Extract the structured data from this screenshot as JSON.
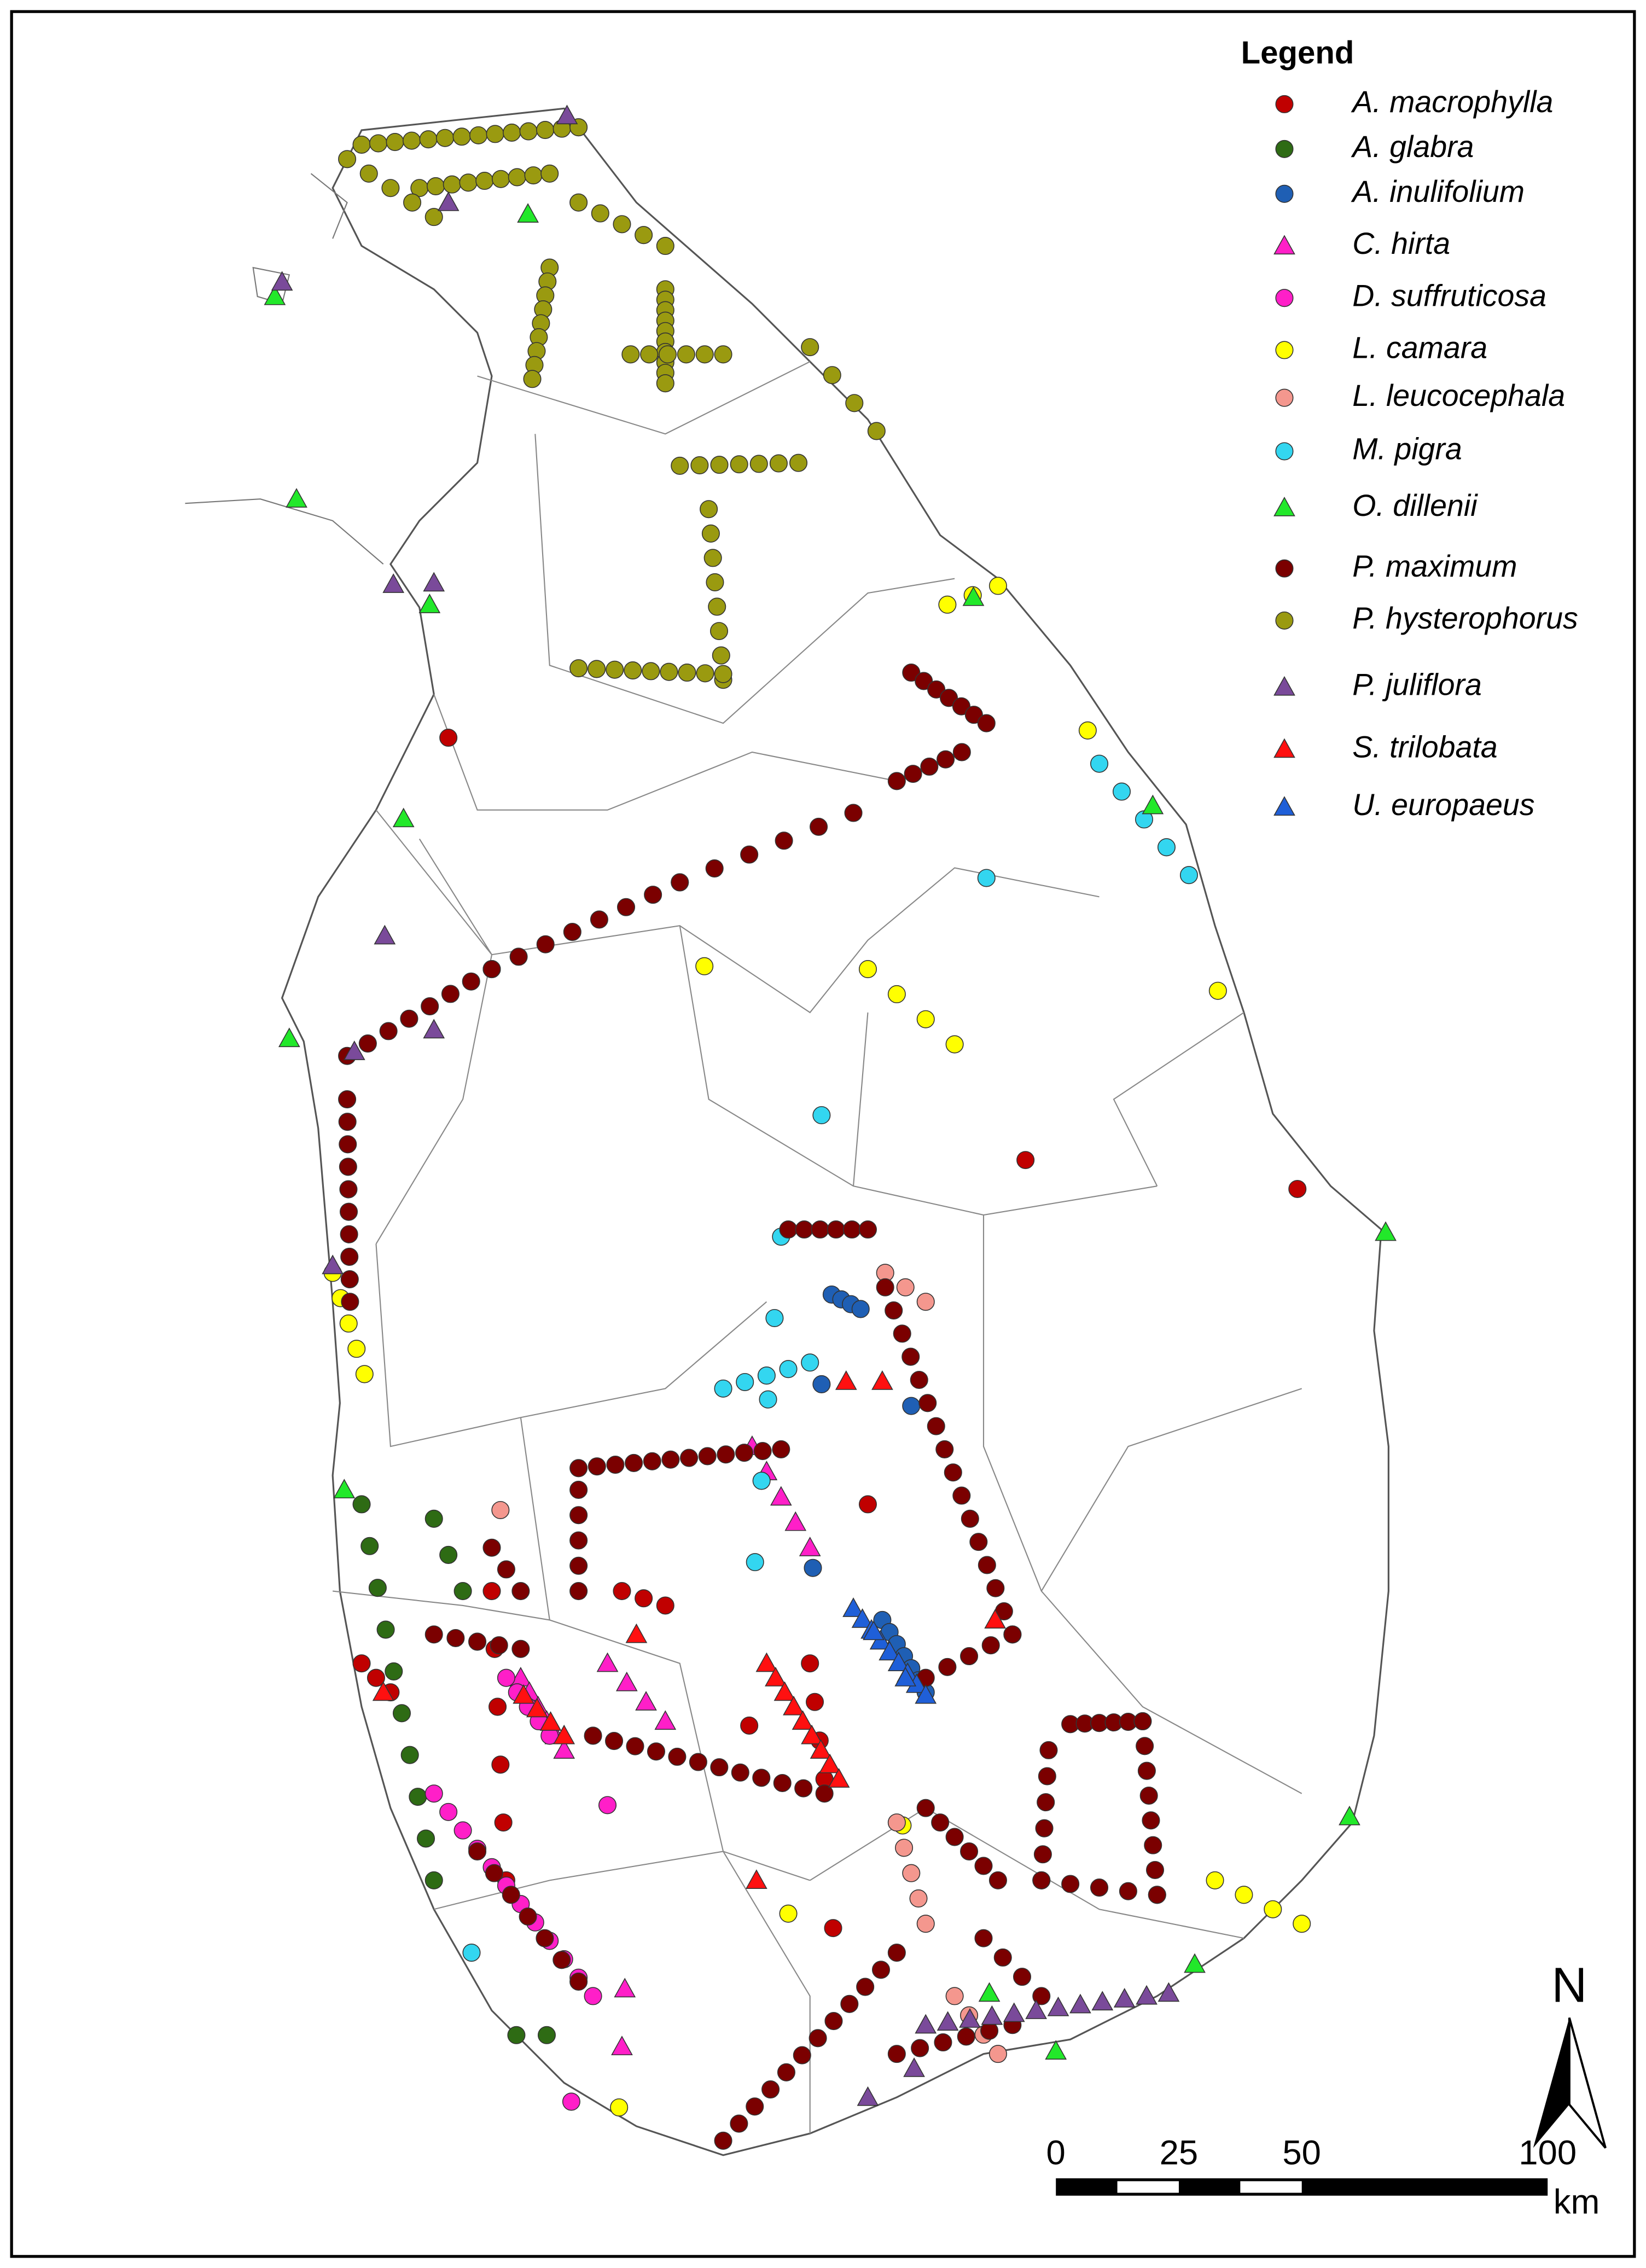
{
  "legend": {
    "title": "Legend",
    "items": [
      {
        "label": "A. macrophylla",
        "color": "#c00000",
        "shape": "circle"
      },
      {
        "label": "A. glabra",
        "color": "#2e6b14",
        "shape": "circle"
      },
      {
        "label": "A. inulifolium",
        "color": "#1f5fb4",
        "shape": "circle"
      },
      {
        "label": "C. hirta",
        "color": "#ff1fc8",
        "shape": "triangle"
      },
      {
        "label": "D. suffruticosa",
        "color": "#ff1fc8",
        "shape": "circle"
      },
      {
        "label": "L. camara",
        "color": "#ffff00",
        "shape": "circle"
      },
      {
        "label": "L. leucocephala",
        "color": "#f4978e",
        "shape": "circle"
      },
      {
        "label": "M. pigra",
        "color": "#33d6f0",
        "shape": "circle"
      },
      {
        "label": "O. dillenii",
        "color": "#22e82a",
        "shape": "triangle"
      },
      {
        "label": "P. maximum",
        "color": "#7b0000",
        "shape": "circle"
      },
      {
        "label": "P. hysterophorus",
        "color": "#9a9a10",
        "shape": "circle"
      },
      {
        "label": "P. juliflora",
        "color": "#7a4a9a",
        "shape": "triangle"
      },
      {
        "label": "S. trilobata",
        "color": "#ff1010",
        "shape": "triangle"
      },
      {
        "label": "U. europaeus",
        "color": "#1f5fd8",
        "shape": "triangle"
      }
    ]
  },
  "scale_bar": {
    "ticks": [
      0,
      25,
      50,
      100
    ],
    "unit": "km"
  },
  "north_arrow": {
    "label": "N"
  }
}
